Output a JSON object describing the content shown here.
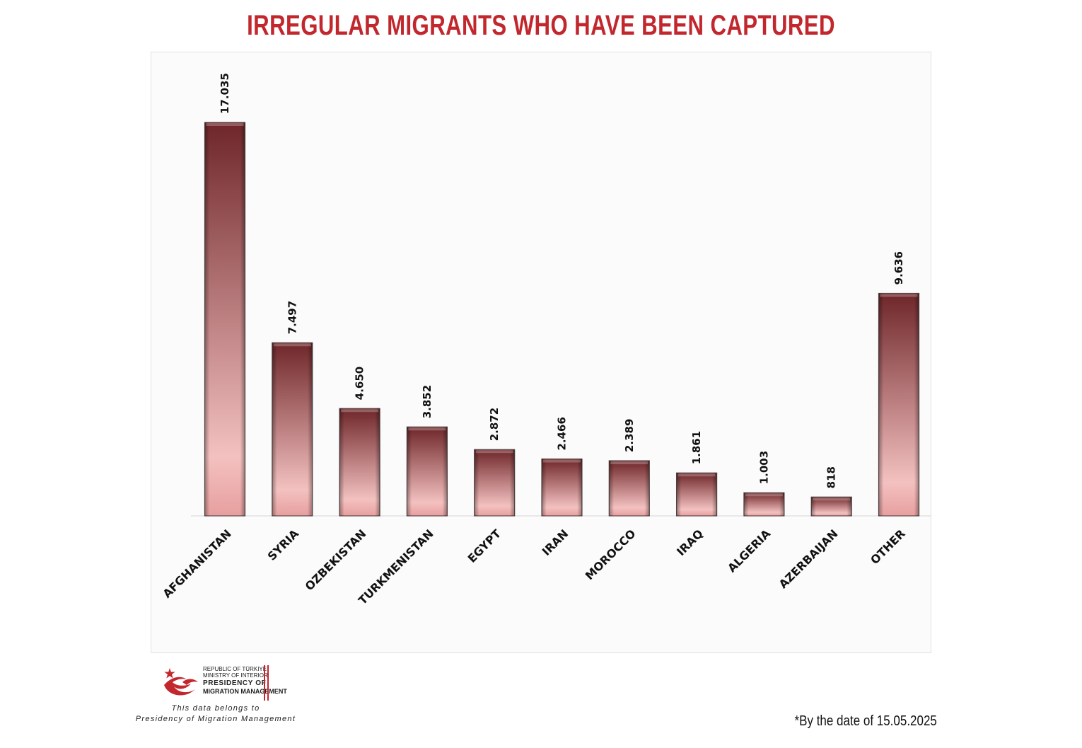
{
  "title": "IRREGULAR MIGRANTS WHO HAVE BEEN CAPTURED",
  "colors": {
    "title": "#c2272d",
    "bar_dark": "#6e2629",
    "bar_light": "#f3c1c0",
    "logo_red": "#c2272d"
  },
  "chart_data": {
    "type": "bar",
    "title": "IRREGULAR MIGRANTS WHO HAVE BEEN CAPTURED",
    "xlabel": "",
    "ylabel": "",
    "categories": [
      "AFGHANISTAN",
      "SYRIA",
      "OZBEKISTAN",
      "TURKMENISTAN",
      "EGYPT",
      "IRAN",
      "MOROCCO",
      "IRAQ",
      "ALGERIA",
      "AZERBAIJAN",
      "OTHER"
    ],
    "values": [
      17035,
      7497,
      4650,
      3852,
      2872,
      2466,
      2389,
      1861,
      1003,
      818,
      9636
    ],
    "data_labels": [
      "17.035",
      "7.497",
      "4.650",
      "3.852",
      "2.872",
      "2.466",
      "2.389",
      "1.861",
      "1.003",
      "818",
      "9.636"
    ],
    "ylim": [
      0,
      17035
    ],
    "grid": false,
    "legend": "none"
  },
  "logo": {
    "icon": "crescent-star-icon",
    "line1": "REPUBLIC OF TÜRKIYE",
    "line2": "MINISTRY OF INTERIOR",
    "line3": "PRESIDENCY OF",
    "line4": "MIGRATION MANAGEMENT"
  },
  "footer": {
    "ownership_line1": "This data belongs to",
    "ownership_line2": "Presidency of Migration Management",
    "date_note": "*By the date of 15.05.2025"
  }
}
